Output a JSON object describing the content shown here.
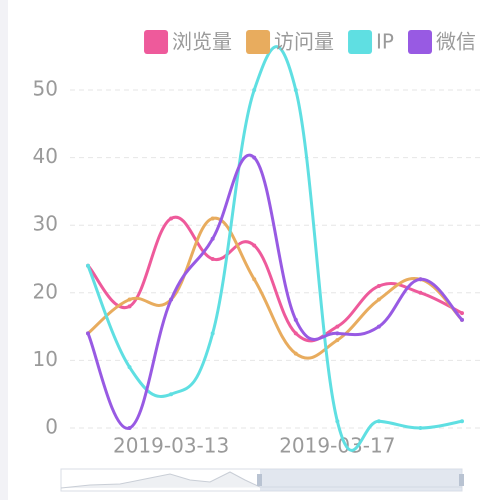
{
  "chart_data": {
    "type": "line",
    "categories": [
      null,
      null,
      "2019-03-13",
      null,
      null,
      null,
      "2019-03-17",
      null,
      null,
      null
    ],
    "series": [
      {
        "name": "浏览量",
        "color": "#ee5a9b",
        "values": [
          24,
          18,
          31,
          25,
          27,
          14,
          15,
          21,
          20,
          17
        ]
      },
      {
        "name": "访问量",
        "color": "#e8ac5e",
        "values": [
          14,
          19,
          19,
          31,
          22,
          11,
          13,
          19,
          22,
          16
        ]
      },
      {
        "name": "IP",
        "color": "#5fdfe2",
        "values": [
          24,
          9,
          5,
          14,
          50,
          50,
          1,
          1,
          0,
          1
        ]
      },
      {
        "name": "微信",
        "color": "#985ae3",
        "values": [
          14,
          0,
          19,
          28,
          40,
          16,
          14,
          15,
          22,
          16
        ]
      }
    ],
    "ylim": [
      0,
      50
    ],
    "yticks": [
      0,
      10,
      20,
      30,
      40,
      50
    ],
    "grid": true,
    "legend": "top-right",
    "smooth": true
  }
}
